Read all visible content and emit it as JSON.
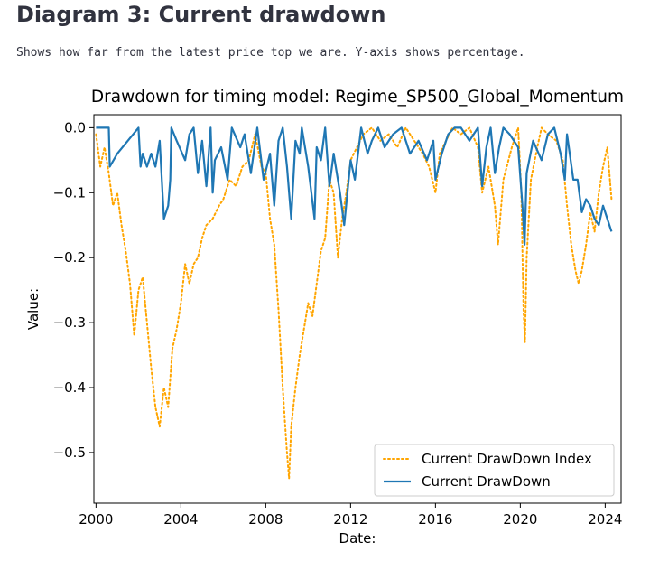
{
  "page": {
    "heading": "Diagram 3: Current drawdown",
    "description": "Shows how far from the latest price top we are. Y-axis shows percentage."
  },
  "chart_data": {
    "type": "line",
    "title": "Drawdown for timing model: Regime_SP500_Global_Momentum",
    "xlabel": "Date:",
    "ylabel": "Value:",
    "xlim": [
      1999.9,
      2024.75
    ],
    "ylim": [
      -0.578,
      0.02
    ],
    "x_ticks": [
      2000,
      2004,
      2008,
      2012,
      2016,
      2020,
      2024
    ],
    "y_ticks": [
      0.0,
      -0.1,
      -0.2,
      -0.3,
      -0.4,
      -0.5
    ],
    "y_tick_labels": [
      "0.0",
      "−0.1",
      "−0.2",
      "−0.3",
      "−0.4",
      "−0.5"
    ],
    "legend_position": "lower right",
    "grid": false,
    "series": [
      {
        "name": "Current DrawDown Index",
        "color": "#ffa500",
        "style": "dotted",
        "x": [
          2000.0,
          2000.2,
          2000.4,
          2000.6,
          2000.8,
          2001.0,
          2001.2,
          2001.4,
          2001.6,
          2001.8,
          2002.0,
          2002.2,
          2002.4,
          2002.6,
          2002.8,
          2003.0,
          2003.2,
          2003.4,
          2003.6,
          2003.8,
          2004.0,
          2004.2,
          2004.4,
          2004.6,
          2004.8,
          2005.0,
          2005.2,
          2005.5,
          2005.8,
          2006.0,
          2006.3,
          2006.6,
          2006.9,
          2007.2,
          2007.5,
          2007.8,
          2008.0,
          2008.2,
          2008.4,
          2008.6,
          2008.8,
          2008.9,
          2009.0,
          2009.1,
          2009.2,
          2009.4,
          2009.6,
          2009.8,
          2010.0,
          2010.2,
          2010.4,
          2010.6,
          2010.8,
          2011.0,
          2011.2,
          2011.4,
          2011.6,
          2011.8,
          2012.0,
          2012.3,
          2012.6,
          2013.0,
          2013.4,
          2013.8,
          2014.2,
          2014.6,
          2015.0,
          2015.4,
          2015.7,
          2016.0,
          2016.2,
          2016.5,
          2016.8,
          2017.2,
          2017.6,
          2018.0,
          2018.2,
          2018.5,
          2018.8,
          2018.95,
          2019.2,
          2019.6,
          2019.9,
          2020.05,
          2020.15,
          2020.22,
          2020.3,
          2020.5,
          2020.8,
          2021.0,
          2021.3,
          2021.7,
          2022.0,
          2022.2,
          2022.4,
          2022.6,
          2022.75,
          2022.9,
          2023.1,
          2023.3,
          2023.5,
          2023.7,
          2023.9,
          2024.1,
          2024.3
        ],
        "y": [
          -0.01,
          -0.06,
          -0.03,
          -0.07,
          -0.12,
          -0.1,
          -0.15,
          -0.19,
          -0.24,
          -0.32,
          -0.25,
          -0.23,
          -0.3,
          -0.37,
          -0.43,
          -0.46,
          -0.4,
          -0.43,
          -0.34,
          -0.31,
          -0.27,
          -0.21,
          -0.24,
          -0.21,
          -0.2,
          -0.17,
          -0.15,
          -0.14,
          -0.12,
          -0.11,
          -0.08,
          -0.09,
          -0.06,
          -0.05,
          -0.01,
          -0.06,
          -0.07,
          -0.14,
          -0.18,
          -0.28,
          -0.4,
          -0.45,
          -0.5,
          -0.54,
          -0.46,
          -0.4,
          -0.35,
          -0.31,
          -0.27,
          -0.29,
          -0.24,
          -0.19,
          -0.17,
          -0.08,
          -0.1,
          -0.2,
          -0.14,
          -0.1,
          -0.05,
          -0.03,
          -0.01,
          0.0,
          -0.02,
          -0.01,
          -0.03,
          0.0,
          -0.02,
          -0.04,
          -0.06,
          -0.1,
          -0.04,
          -0.02,
          0.0,
          -0.01,
          0.0,
          -0.03,
          -0.1,
          -0.06,
          -0.12,
          -0.18,
          -0.08,
          -0.03,
          0.0,
          -0.1,
          -0.28,
          -0.33,
          -0.2,
          -0.08,
          -0.03,
          0.0,
          -0.01,
          -0.02,
          -0.05,
          -0.12,
          -0.18,
          -0.22,
          -0.24,
          -0.22,
          -0.18,
          -0.13,
          -0.16,
          -0.1,
          -0.06,
          -0.03,
          -0.11
        ]
      },
      {
        "name": "Current DrawDown",
        "color": "#1f77b4",
        "style": "solid",
        "x": [
          2000.0,
          2000.6,
          2000.65,
          2001.0,
          2001.5,
          2002.0,
          2002.1,
          2002.2,
          2002.4,
          2002.6,
          2002.8,
          2003.0,
          2003.2,
          2003.4,
          2003.5,
          2003.55,
          2003.8,
          2004.2,
          2004.4,
          2004.6,
          2004.8,
          2005.0,
          2005.2,
          2005.4,
          2005.5,
          2005.6,
          2005.9,
          2006.2,
          2006.4,
          2006.8,
          2007.0,
          2007.3,
          2007.6,
          2007.9,
          2008.2,
          2008.4,
          2008.6,
          2008.8,
          2009.0,
          2009.2,
          2009.4,
          2009.6,
          2009.7,
          2010.0,
          2010.3,
          2010.4,
          2010.6,
          2010.8,
          2011.0,
          2011.2,
          2011.5,
          2011.7,
          2012.0,
          2012.2,
          2012.5,
          2012.8,
          2013.0,
          2013.3,
          2013.6,
          2014.0,
          2014.4,
          2014.8,
          2015.2,
          2015.6,
          2015.9,
          2016.0,
          2016.3,
          2016.6,
          2016.9,
          2017.2,
          2017.6,
          2018.0,
          2018.2,
          2018.4,
          2018.6,
          2018.8,
          2019.0,
          2019.2,
          2019.5,
          2019.9,
          2020.1,
          2020.2,
          2020.3,
          2020.6,
          2021.0,
          2021.3,
          2021.6,
          2021.9,
          2022.1,
          2022.2,
          2022.5,
          2022.7,
          2022.9,
          2023.1,
          2023.3,
          2023.5,
          2023.7,
          2023.9,
          2024.1,
          2024.3
        ],
        "y": [
          0.0,
          0.0,
          -0.06,
          -0.04,
          -0.02,
          0.0,
          -0.06,
          -0.04,
          -0.06,
          -0.04,
          -0.06,
          -0.02,
          -0.14,
          -0.12,
          -0.08,
          0.0,
          -0.02,
          -0.05,
          -0.01,
          0.0,
          -0.07,
          -0.02,
          -0.09,
          0.0,
          -0.1,
          -0.05,
          -0.03,
          -0.08,
          0.0,
          -0.03,
          -0.01,
          -0.07,
          0.0,
          -0.08,
          -0.04,
          -0.12,
          -0.02,
          0.0,
          -0.06,
          -0.14,
          -0.02,
          -0.04,
          0.0,
          -0.06,
          -0.14,
          -0.03,
          -0.05,
          0.0,
          -0.09,
          -0.04,
          -0.1,
          -0.15,
          -0.05,
          -0.08,
          0.0,
          -0.04,
          -0.02,
          0.0,
          -0.03,
          -0.01,
          0.0,
          -0.04,
          -0.02,
          -0.05,
          -0.02,
          -0.08,
          -0.04,
          -0.01,
          0.0,
          0.0,
          -0.02,
          0.0,
          -0.09,
          -0.03,
          0.0,
          -0.07,
          -0.03,
          0.0,
          -0.01,
          -0.03,
          -0.12,
          -0.18,
          -0.07,
          -0.02,
          -0.05,
          -0.01,
          0.0,
          -0.04,
          -0.08,
          -0.01,
          -0.08,
          -0.08,
          -0.13,
          -0.11,
          -0.12,
          -0.14,
          -0.15,
          -0.12,
          -0.14,
          -0.16
        ]
      }
    ]
  }
}
